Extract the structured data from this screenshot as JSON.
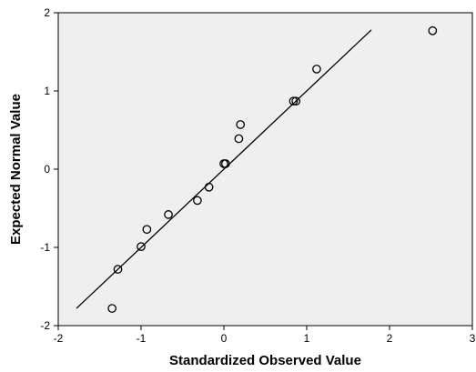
{
  "chart_data": {
    "type": "scatter",
    "title": "",
    "xlabel": "Standardized Observed Value",
    "ylabel": "Expected Normal Value",
    "xlim": [
      -2,
      3
    ],
    "ylim": [
      -2,
      2
    ],
    "x_ticks": [
      "-2",
      "-1",
      "0",
      "1",
      "2",
      "3"
    ],
    "y_ticks": [
      "-2",
      "-1",
      "0",
      "1",
      "2"
    ],
    "grid": false,
    "plot_background": "#efefef",
    "marker": "open-circle",
    "points": [
      {
        "x": -1.35,
        "y": -1.78
      },
      {
        "x": -1.28,
        "y": -1.28
      },
      {
        "x": -1.0,
        "y": -0.99
      },
      {
        "x": -0.93,
        "y": -0.77
      },
      {
        "x": -0.67,
        "y": -0.58
      },
      {
        "x": -0.32,
        "y": -0.4
      },
      {
        "x": -0.18,
        "y": -0.23
      },
      {
        "x": 0.0,
        "y": 0.07
      },
      {
        "x": 0.02,
        "y": 0.07
      },
      {
        "x": 0.18,
        "y": 0.39
      },
      {
        "x": 0.2,
        "y": 0.57
      },
      {
        "x": 0.84,
        "y": 0.87
      },
      {
        "x": 0.87,
        "y": 0.87
      },
      {
        "x": 1.12,
        "y": 1.28
      },
      {
        "x": 2.52,
        "y": 1.77
      }
    ],
    "reference_line": {
      "x1": -1.78,
      "y1": -1.78,
      "x2": 1.78,
      "y2": 1.78
    }
  }
}
